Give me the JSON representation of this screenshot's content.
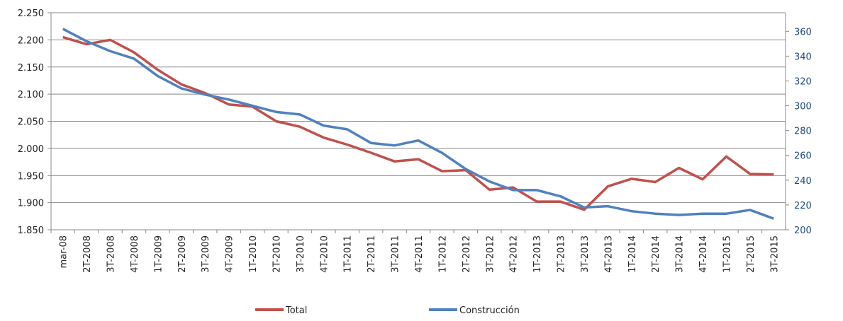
{
  "chart_data": {
    "type": "line",
    "categories": [
      "mar-08",
      "2T-2008",
      "3T-2008",
      "4T-2008",
      "1T-2009",
      "2T-2009",
      "3T-2009",
      "4T-2009",
      "1T-2010",
      "2T-2010",
      "3T-2010",
      "4T-2010",
      "1T-2011",
      "2T-2011",
      "3T-2011",
      "4T-2011",
      "1T-2012",
      "2T-2012",
      "3T-2012",
      "4T-2012",
      "1T-2013",
      "2T-2013",
      "3T-2013",
      "4T-2013",
      "1T-2014",
      "2T-2014",
      "3T-2014",
      "4T-2014",
      "1T-2015",
      "2T-2015",
      "3T-2015"
    ],
    "series": [
      {
        "name": "Total",
        "color": "#c0504d",
        "values": [
          2205,
          2192,
          2200,
          2177,
          2145,
          2118,
          2102,
          2081,
          2077,
          2050,
          2040,
          2020,
          2007,
          1992,
          1976,
          1980,
          1958,
          1960,
          1924,
          1928,
          1902,
          1902,
          1887,
          1930,
          1944,
          1938,
          1964,
          1943,
          1985,
          1953,
          1952
        ]
      },
      {
        "name": "Construcción",
        "color": "#4f81bd",
        "axis": "y2",
        "values": [
          362,
          352,
          344,
          338,
          324,
          314,
          309,
          305,
          300,
          295,
          293,
          284,
          281,
          270,
          268,
          272,
          262,
          249,
          239,
          232,
          232,
          227,
          218,
          219,
          215,
          213,
          212,
          213,
          213,
          216,
          209
        ]
      }
    ],
    "ylim": [
      1850,
      2250
    ],
    "yticks": [
      {
        "value": 1850,
        "label": "1.850"
      },
      {
        "value": 1900,
        "label": "1.900"
      },
      {
        "value": 1950,
        "label": "1.950"
      },
      {
        "value": 2000,
        "label": "2.000"
      },
      {
        "value": 2050,
        "label": "2.050"
      },
      {
        "value": 2100,
        "label": "2.100"
      },
      {
        "value": 2150,
        "label": "2.150"
      },
      {
        "value": 2200,
        "label": "2.200"
      },
      {
        "value": 2250,
        "label": "2.250"
      }
    ],
    "y2lim": [
      200,
      375
    ],
    "y2ticks": [
      200,
      220,
      240,
      260,
      280,
      300,
      320,
      340,
      360
    ],
    "grid": true,
    "legend": "bottom"
  }
}
